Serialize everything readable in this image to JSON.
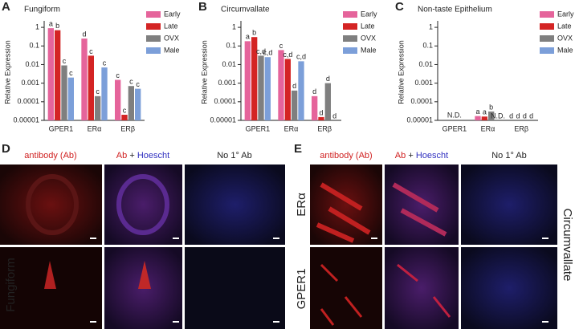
{
  "chart_data": [
    {
      "type": "bar",
      "panel": "A",
      "title": "Fungiform",
      "y_label": "Relative Expression",
      "log_scale": true,
      "ylim": [
        1e-05,
        1.5
      ],
      "yticks": [
        1e-05,
        0.0001,
        0.001,
        0.01,
        0.1,
        1
      ],
      "legend": "upper right",
      "categories": [
        "GPER1",
        "ERα",
        "ERβ"
      ],
      "series": [
        {
          "name": "Early",
          "color": "#e5649b",
          "values": [
            0.9,
            0.25,
            0.0015
          ],
          "letters": [
            "a",
            "d",
            "c"
          ]
        },
        {
          "name": "Late",
          "color": "#d42424",
          "values": [
            0.7,
            0.03,
            2e-05
          ],
          "letters": [
            "b",
            "c",
            "c"
          ]
        },
        {
          "name": "OVX",
          "color": "#7f7f7f",
          "values": [
            0.009,
            0.0002,
            0.0007
          ],
          "letters": [
            "c",
            "c",
            "c"
          ]
        },
        {
          "name": "Male",
          "color": "#7c9fd9",
          "values": [
            0.002,
            0.007,
            0.0005
          ],
          "letters": [
            "c",
            "c",
            "c"
          ]
        }
      ]
    },
    {
      "type": "bar",
      "panel": "B",
      "title": "Circumvallate",
      "y_label": "Relative Expression",
      "log_scale": true,
      "ylim": [
        1e-05,
        1.5
      ],
      "yticks": [
        1e-05,
        0.0001,
        0.001,
        0.01,
        0.1,
        1
      ],
      "legend": "upper right",
      "categories": [
        "GPER1",
        "ERα",
        "ERβ"
      ],
      "series": [
        {
          "name": "Early",
          "color": "#e5649b",
          "values": [
            0.18,
            0.06,
            0.0002
          ],
          "letters": [
            "a",
            "c",
            "d"
          ]
        },
        {
          "name": "Late",
          "color": "#d42424",
          "values": [
            0.3,
            0.02,
            1.5e-05
          ],
          "letters": [
            "b",
            "c,d",
            "d"
          ]
        },
        {
          "name": "OVX",
          "color": "#7f7f7f",
          "values": [
            0.03,
            0.0004,
            0.001
          ],
          "letters": [
            "c,d",
            "d",
            "d"
          ]
        },
        {
          "name": "Male",
          "color": "#7c9fd9",
          "values": [
            0.025,
            0.015,
            null
          ],
          "letters": [
            "c,d",
            "c,d",
            "d"
          ]
        }
      ]
    },
    {
      "type": "bar",
      "panel": "C",
      "title": "Non-taste Epithelium",
      "y_label": "Relative Expression",
      "log_scale": true,
      "ylim": [
        1e-05,
        1.5
      ],
      "yticks": [
        1e-05,
        0.0001,
        0.001,
        0.01,
        0.1,
        1
      ],
      "legend": "upper right",
      "categories": [
        "GPER1",
        "ERα",
        "ERβ"
      ],
      "category_notes": [
        "N.D.",
        null,
        null
      ],
      "series": [
        {
          "name": "Early",
          "color": "#e5649b",
          "values": [
            null,
            1.7e-05,
            null
          ],
          "letters": [
            null,
            "a",
            "d"
          ]
        },
        {
          "name": "Late",
          "color": "#d42424",
          "values": [
            null,
            1.6e-05,
            null
          ],
          "letters": [
            null,
            "a",
            "d"
          ]
        },
        {
          "name": "OVX",
          "color": "#7f7f7f",
          "values": [
            null,
            3e-05,
            null
          ],
          "letters": [
            null,
            "b",
            "d"
          ]
        },
        {
          "name": "Male",
          "color": "#7c9fd9",
          "values": [
            null,
            null,
            null
          ],
          "letters": [
            null,
            "N.D.",
            "d"
          ]
        }
      ]
    }
  ],
  "panel_d": {
    "label": "D",
    "columns": [
      "antibody (Ab)",
      {
        "ab": "Ab",
        "plus": "+",
        "stain": "Hoescht"
      },
      "No 1° Ab"
    ],
    "row_label": "Fungiform"
  },
  "panel_e": {
    "label": "E",
    "columns": [
      "antibody (Ab)",
      {
        "ab": "Ab",
        "plus": "+",
        "stain": "Hoescht"
      },
      "No 1° Ab"
    ],
    "row_labels": [
      "ERα",
      "GPER1"
    ],
    "side_label": "Circumvallate"
  }
}
